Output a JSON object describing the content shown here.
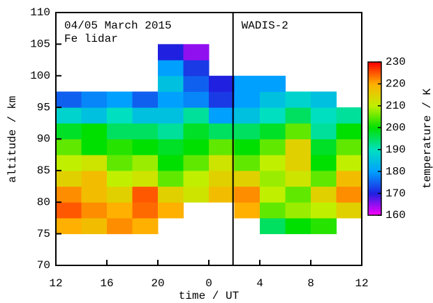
{
  "chart_data": {
    "type": "heatmap",
    "title": "04/05 March 2015",
    "subtitle": "Fe lidar",
    "xlabel": "time / UT",
    "ylabel": "altitude / km",
    "colorbar_label": "temperature / K",
    "annotations": [
      {
        "text": "WADIS-2",
        "x": 25.9
      }
    ],
    "xlim": [
      12,
      36
    ],
    "ylim": [
      70,
      110
    ],
    "xticks": [
      12,
      16,
      20,
      {
        "value": 24,
        "label": "0"
      },
      {
        "value": 28,
        "label": "4"
      },
      {
        "value": 32,
        "label": "8"
      },
      {
        "value": 36,
        "label": "12"
      }
    ],
    "yticks": [
      70,
      75,
      80,
      85,
      90,
      95,
      100,
      105,
      110
    ],
    "clim": [
      160,
      230
    ],
    "cticks": [
      160,
      170,
      180,
      190,
      200,
      210,
      220,
      230
    ],
    "colormap": [
      "#ff00ff",
      "#2020e0",
      "#00a0ff",
      "#00e0c0",
      "#00e000",
      "#c0f000",
      "#ffb000",
      "#ff0000"
    ],
    "xbins": [
      12,
      14,
      16,
      18,
      20,
      22,
      24,
      26,
      28,
      30,
      32,
      34,
      36
    ],
    "ybins": [
      75,
      77.5,
      80,
      82.5,
      85,
      87.5,
      90,
      92.5,
      95,
      97.5,
      100,
      102.5,
      105
    ],
    "values": [
      [
        220,
        218,
        222,
        220,
        null,
        null,
        null,
        null,
        195,
        200,
        202,
        null
      ],
      [
        225,
        222,
        220,
        224,
        220,
        null,
        null,
        220,
        205,
        208,
        210,
        215
      ],
      [
        222,
        218,
        215,
        225,
        215,
        212,
        218,
        222,
        210,
        205,
        215,
        222
      ],
      [
        215,
        218,
        210,
        212,
        205,
        210,
        215,
        215,
        208,
        212,
        205,
        218
      ],
      [
        210,
        212,
        205,
        208,
        200,
        205,
        212,
        205,
        210,
        215,
        200,
        210
      ],
      [
        205,
        200,
        202,
        200,
        198,
        200,
        205,
        200,
        205,
        215,
        198,
        205
      ],
      [
        198,
        200,
        195,
        195,
        192,
        198,
        195,
        195,
        198,
        205,
        192,
        200
      ],
      [
        188,
        185,
        190,
        185,
        185,
        192,
        180,
        185,
        190,
        195,
        190,
        192
      ],
      [
        175,
        178,
        180,
        175,
        180,
        178,
        172,
        180,
        185,
        188,
        185,
        null
      ],
      [
        null,
        null,
        null,
        null,
        185,
        175,
        170,
        180,
        180,
        null,
        null,
        null
      ],
      [
        null,
        null,
        null,
        null,
        180,
        172,
        null,
        null,
        null,
        null,
        null,
        null
      ],
      [
        null,
        null,
        null,
        null,
        170,
        165,
        null,
        null,
        null,
        null,
        null,
        null
      ]
    ]
  }
}
